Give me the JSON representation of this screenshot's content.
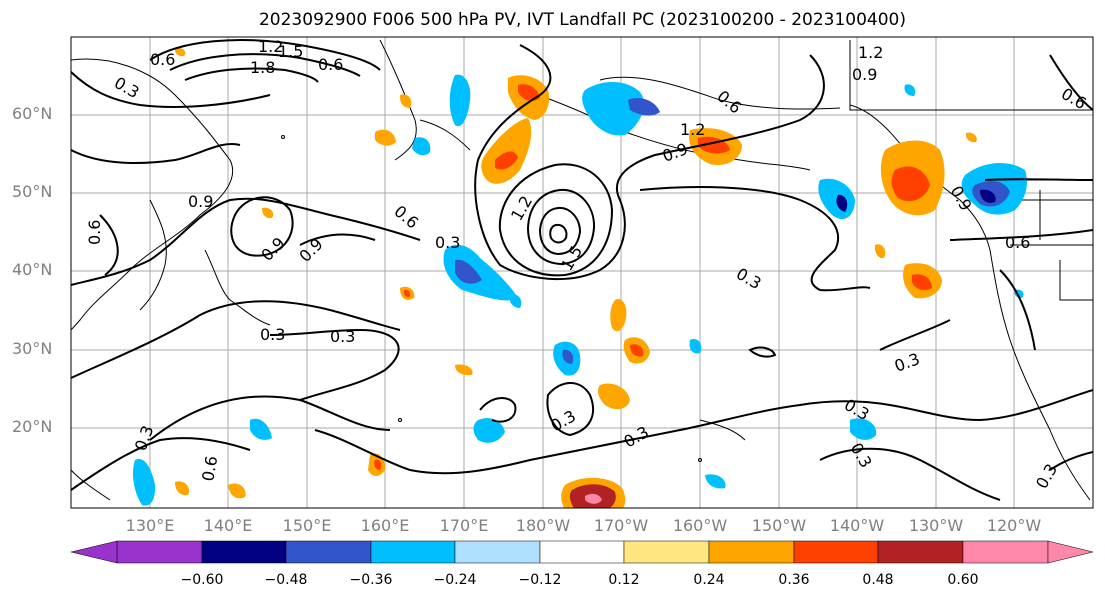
{
  "title": "2023092900 F006 500 hPa PV, IVT Landfall PC (2023100200 - 2023100400)",
  "lat_labels": [
    "60°N",
    "50°N",
    "40°N",
    "30°N",
    "20°N"
  ],
  "lon_labels": [
    "130°E",
    "140°E",
    "150°E",
    "160°E",
    "170°E",
    "180°W",
    "170°W",
    "160°W",
    "150°W",
    "140°W",
    "130°W",
    "120°W"
  ],
  "contour_labels": [
    "0.3",
    "0.6",
    "0.9",
    "1.2",
    "1.5",
    "1.8"
  ],
  "colorbar": {
    "ticks": [
      "−0.60",
      "−0.48",
      "−0.36",
      "−0.24",
      "−0.12",
      "0.12",
      "0.24",
      "0.36",
      "0.48",
      "0.60"
    ],
    "colors": [
      "#9933cc",
      "#000080",
      "#3355cc",
      "#00bfff",
      "#b0e0ff",
      "#ffffff",
      "#ffe680",
      "#ffa500",
      "#ff4000",
      "#b22222",
      "#ff88aa"
    ]
  }
}
